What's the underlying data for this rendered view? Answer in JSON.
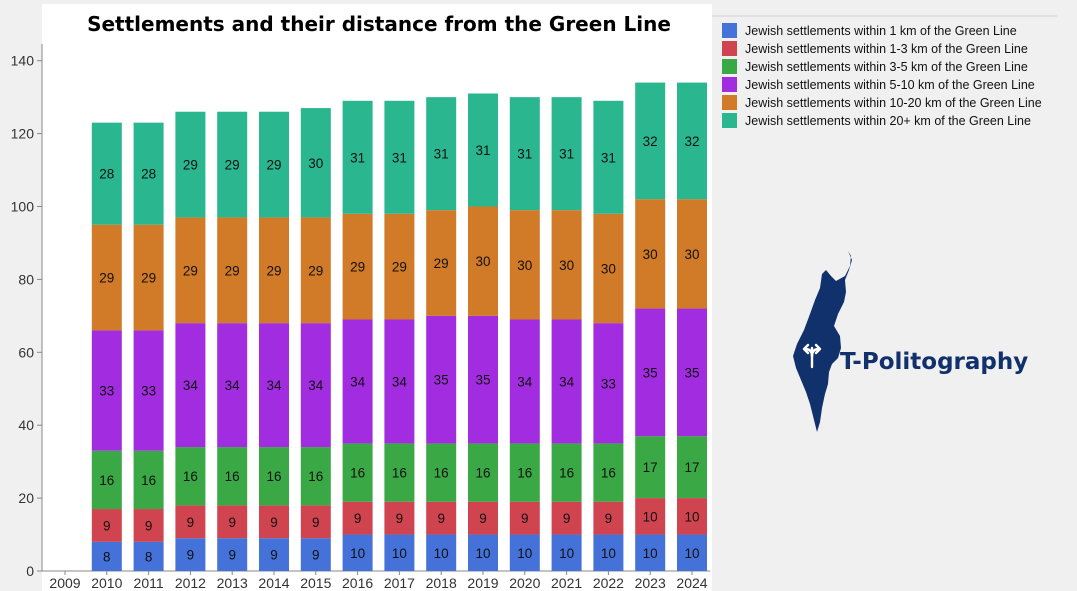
{
  "chart_data": {
    "type": "bar",
    "stacked": true,
    "title": "Settlements and their distance from the Green Line",
    "xlabel": "",
    "ylabel": "",
    "ylim": [
      0,
      145
    ],
    "yticks": [
      0,
      20,
      40,
      60,
      80,
      100,
      120,
      140
    ],
    "grid": false,
    "legend_position": "top-right",
    "categories": [
      "2009",
      "2010",
      "2011",
      "2012",
      "2013",
      "2014",
      "2015",
      "2016",
      "2017",
      "2018",
      "2019",
      "2020",
      "2021",
      "2022",
      "2023",
      "2024"
    ],
    "series": [
      {
        "name": "Jewish settlements within 1 km of the Green Line",
        "color": "#4472d9",
        "values": [
          null,
          8,
          8,
          9,
          9,
          9,
          9,
          10,
          10,
          10,
          10,
          10,
          10,
          10,
          10,
          10
        ]
      },
      {
        "name": "Jewish settlements within 1-3 km of the Green Line",
        "color": "#d0444f",
        "values": [
          null,
          9,
          9,
          9,
          9,
          9,
          9,
          9,
          9,
          9,
          9,
          9,
          9,
          9,
          10,
          10
        ]
      },
      {
        "name": "Jewish settlements within 3-5 km of the Green Line",
        "color": "#3aa845",
        "values": [
          null,
          16,
          16,
          16,
          16,
          16,
          16,
          16,
          16,
          16,
          16,
          16,
          16,
          16,
          17,
          17
        ]
      },
      {
        "name": "Jewish settlements within 5-10 km of the Green Line",
        "color": "#a22de0",
        "values": [
          null,
          33,
          33,
          34,
          34,
          34,
          34,
          34,
          34,
          35,
          35,
          34,
          34,
          33,
          35,
          35
        ]
      },
      {
        "name": "Jewish settlements within 10-20 km of the Green Line",
        "color": "#d17a27",
        "values": [
          null,
          29,
          29,
          29,
          29,
          29,
          29,
          29,
          29,
          29,
          30,
          30,
          30,
          30,
          30,
          30
        ]
      },
      {
        "name": "Jewish settlements within 20+ km of the Green Line",
        "color": "#2ab68f",
        "values": [
          null,
          28,
          28,
          29,
          29,
          29,
          30,
          31,
          31,
          31,
          31,
          31,
          31,
          31,
          32,
          32
        ]
      }
    ]
  },
  "logo": {
    "brand": "T-Politography",
    "icon": "israel-map-icon",
    "color": "#10316b"
  }
}
